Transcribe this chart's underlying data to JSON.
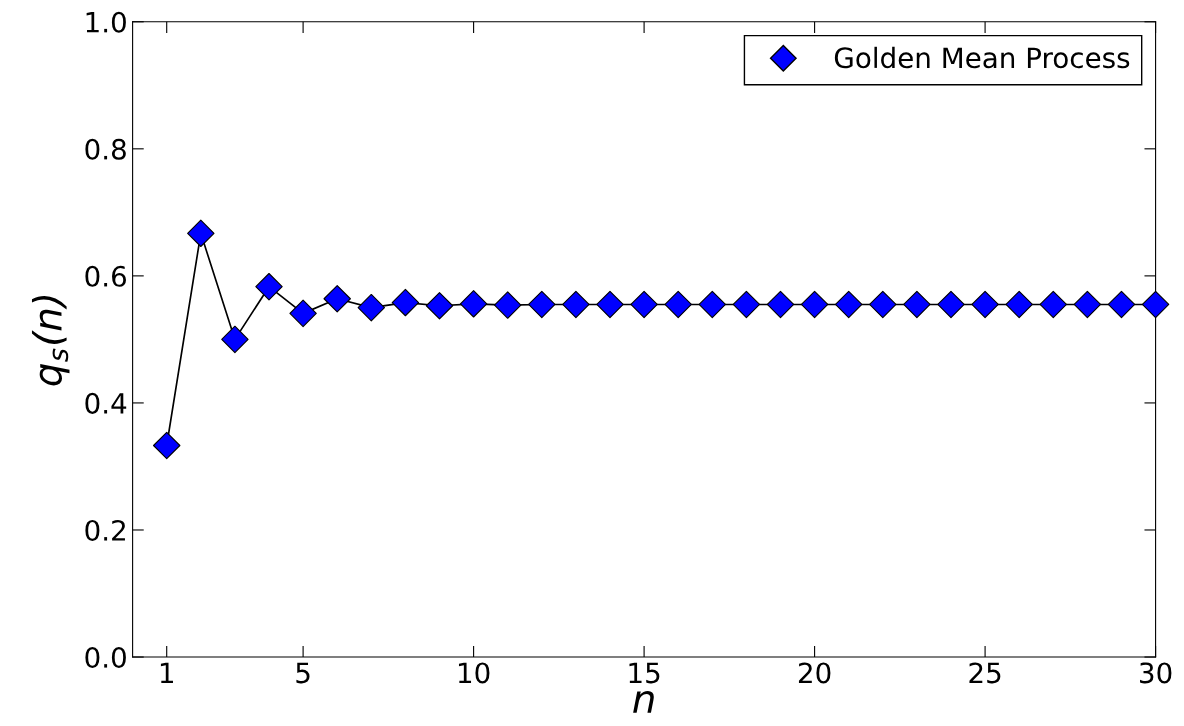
{
  "chart_data": {
    "type": "line",
    "xlabel": "n",
    "ylabel": "q$_{s}$(n)",
    "x": [
      1,
      2,
      3,
      4,
      5,
      6,
      7,
      8,
      9,
      10,
      11,
      12,
      13,
      14,
      15,
      16,
      17,
      18,
      19,
      20,
      21,
      22,
      23,
      24,
      25,
      26,
      27,
      28,
      29,
      30
    ],
    "series": [
      {
        "name": "Golden Mean Process",
        "color": "#0000ff",
        "values": [
          0.333,
          0.667,
          0.5,
          0.583,
          0.541,
          0.564,
          0.55,
          0.558,
          0.553,
          0.556,
          0.554,
          0.555,
          0.555,
          0.555,
          0.555,
          0.555,
          0.555,
          0.555,
          0.555,
          0.555,
          0.555,
          0.555,
          0.555,
          0.555,
          0.555,
          0.555,
          0.555,
          0.555,
          0.555,
          0.555
        ]
      }
    ],
    "xlim": [
      0,
      30
    ],
    "xticks": [
      1,
      5,
      10,
      15,
      20,
      25,
      30
    ],
    "ylim": [
      0,
      1.0
    ],
    "yticks": [
      {
        "value": 0,
        "label": "0.0"
      },
      {
        "value": 0.2,
        "label": "0.2"
      },
      {
        "value": 0.4,
        "label": "0.4"
      },
      {
        "value": 0.6,
        "label": "0.6"
      },
      {
        "value": 0.8,
        "label": "0.8"
      },
      {
        "value": 1.0,
        "label": "1.0"
      }
    ],
    "marker": "diamond",
    "line_style": "solid",
    "legend": "top right",
    "grid": false
  }
}
